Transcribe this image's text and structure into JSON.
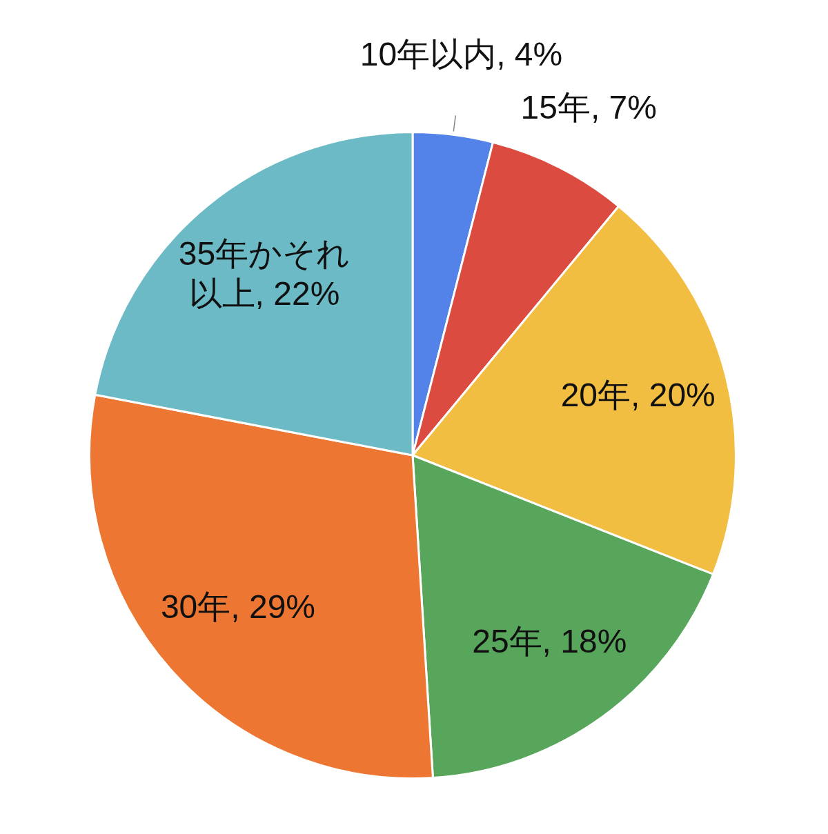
{
  "chart_data": {
    "type": "pie",
    "categories": [
      "10年以内",
      "15年",
      "20年",
      "25年",
      "30年",
      "35年かそれ以上"
    ],
    "values": [
      4,
      7,
      20,
      18,
      29,
      22
    ],
    "value_labels": [
      ", 4%",
      ", 7%",
      ", 20%",
      ", 18%",
      ", 29%",
      ", 22%"
    ],
    "colors": [
      "#5382e8",
      "#db4b3f",
      "#f2be42",
      "#58a55c",
      "#ed7732",
      "#6bbac5"
    ],
    "legend": false
  }
}
